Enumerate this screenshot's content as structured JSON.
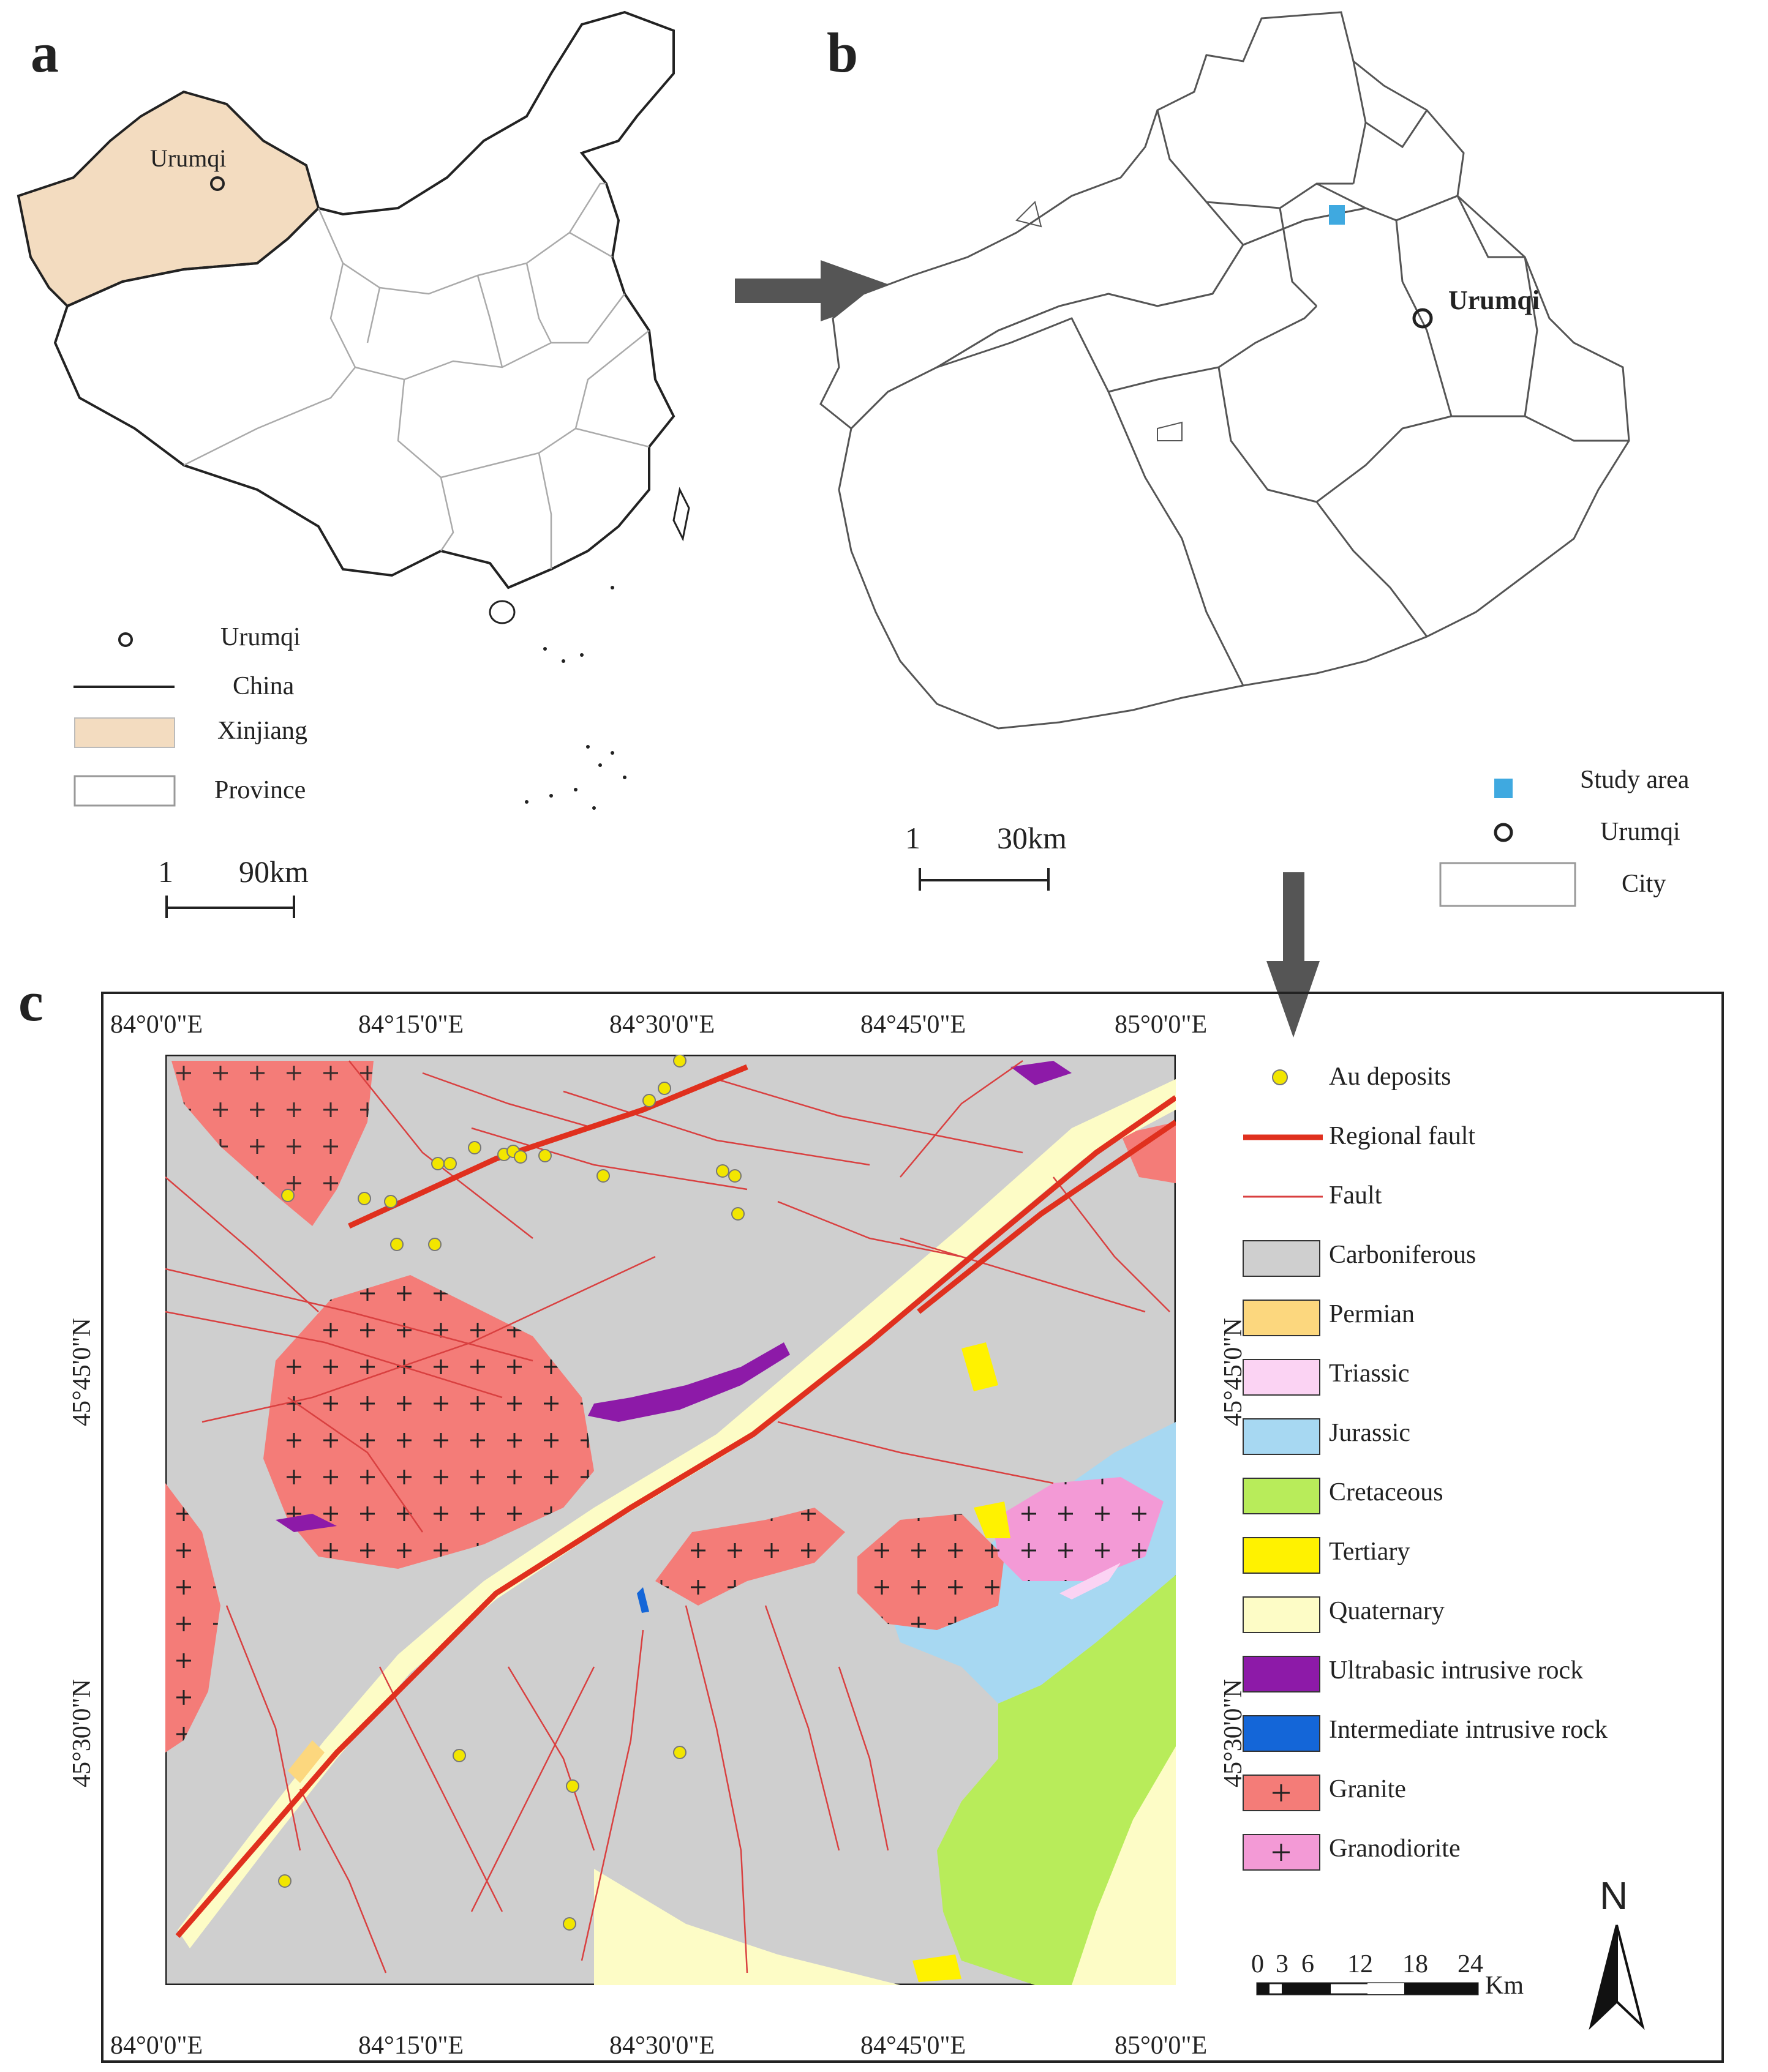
{
  "panels": {
    "a": {
      "letter": "a",
      "city_label": "Urumqi",
      "legend": [
        {
          "key": "urumqi",
          "label": "Urumqi"
        },
        {
          "key": "china",
          "label": "China"
        },
        {
          "key": "xinjiang",
          "label": "Xinjiang"
        },
        {
          "key": "province",
          "label": "Province"
        }
      ],
      "scale": {
        "left": "1",
        "right": "90km"
      },
      "colors": {
        "xinjiang_fill": "#f3dcc0",
        "outline": "#222222",
        "province_line": "#aaaaaa"
      }
    },
    "b": {
      "letter": "b",
      "city_label": "Urumqi",
      "legend": [
        {
          "key": "study_area",
          "label": "Study area"
        },
        {
          "key": "urumqi",
          "label": "Urumqi"
        },
        {
          "key": "city",
          "label": "City"
        }
      ],
      "scale": {
        "left": "1",
        "right": "30km"
      },
      "colors": {
        "study_area": "#3fa9e0",
        "outline": "#555555"
      }
    },
    "c": {
      "letter": "c",
      "top_labels": [
        "84°0'0\"E",
        "84°15'0\"E",
        "84°30'0\"E",
        "84°45'0\"E",
        "85°0'0\"E"
      ],
      "bottom_labels": [
        "84°0'0\"E",
        "84°15'0\"E",
        "84°30'0\"E",
        "84°45'0\"E",
        "85°0'0\"E"
      ],
      "left_labels": [
        "45°45'0\"N",
        "45°30'0\"N"
      ],
      "right_labels": [
        "45°45'0\"N",
        "45°30'0\"N"
      ],
      "legend": [
        {
          "key": "au",
          "label": "Au deposits",
          "color": "#f2e600"
        },
        {
          "key": "regional_fault",
          "label": "Regional fault",
          "color": "#e0301e"
        },
        {
          "key": "fault",
          "label": "Fault",
          "color": "#d94040"
        },
        {
          "key": "carboniferous",
          "label": "Carboniferous",
          "color": "#cfcfcf"
        },
        {
          "key": "permian",
          "label": "Permian",
          "color": "#fcd77e"
        },
        {
          "key": "triassic",
          "label": "Triassic",
          "color": "#fbd3f3"
        },
        {
          "key": "jurassic",
          "label": "Jurassic",
          "color": "#a7d8f2"
        },
        {
          "key": "cretaceous",
          "label": "Cretaceous",
          "color": "#b8ec5a"
        },
        {
          "key": "tertiary",
          "label": "Tertiary",
          "color": "#fff200"
        },
        {
          "key": "quaternary",
          "label": "Quaternary",
          "color": "#fdfcc6"
        },
        {
          "key": "ultrabasic",
          "label": "Ultrabasic intrusive rock",
          "color": "#8d1aa8"
        },
        {
          "key": "intermediate",
          "label": "Intermediate intrusive rock",
          "color": "#1466d8"
        },
        {
          "key": "granite",
          "label": "Granite",
          "color": "#f47c78"
        },
        {
          "key": "granodiorite",
          "label": "Granodiorite",
          "color": "#f39ad6"
        }
      ],
      "scale": {
        "ticks": [
          "0",
          "3",
          "6",
          "12",
          "18",
          "24"
        ],
        "unit": "Km"
      },
      "north": "N"
    }
  }
}
